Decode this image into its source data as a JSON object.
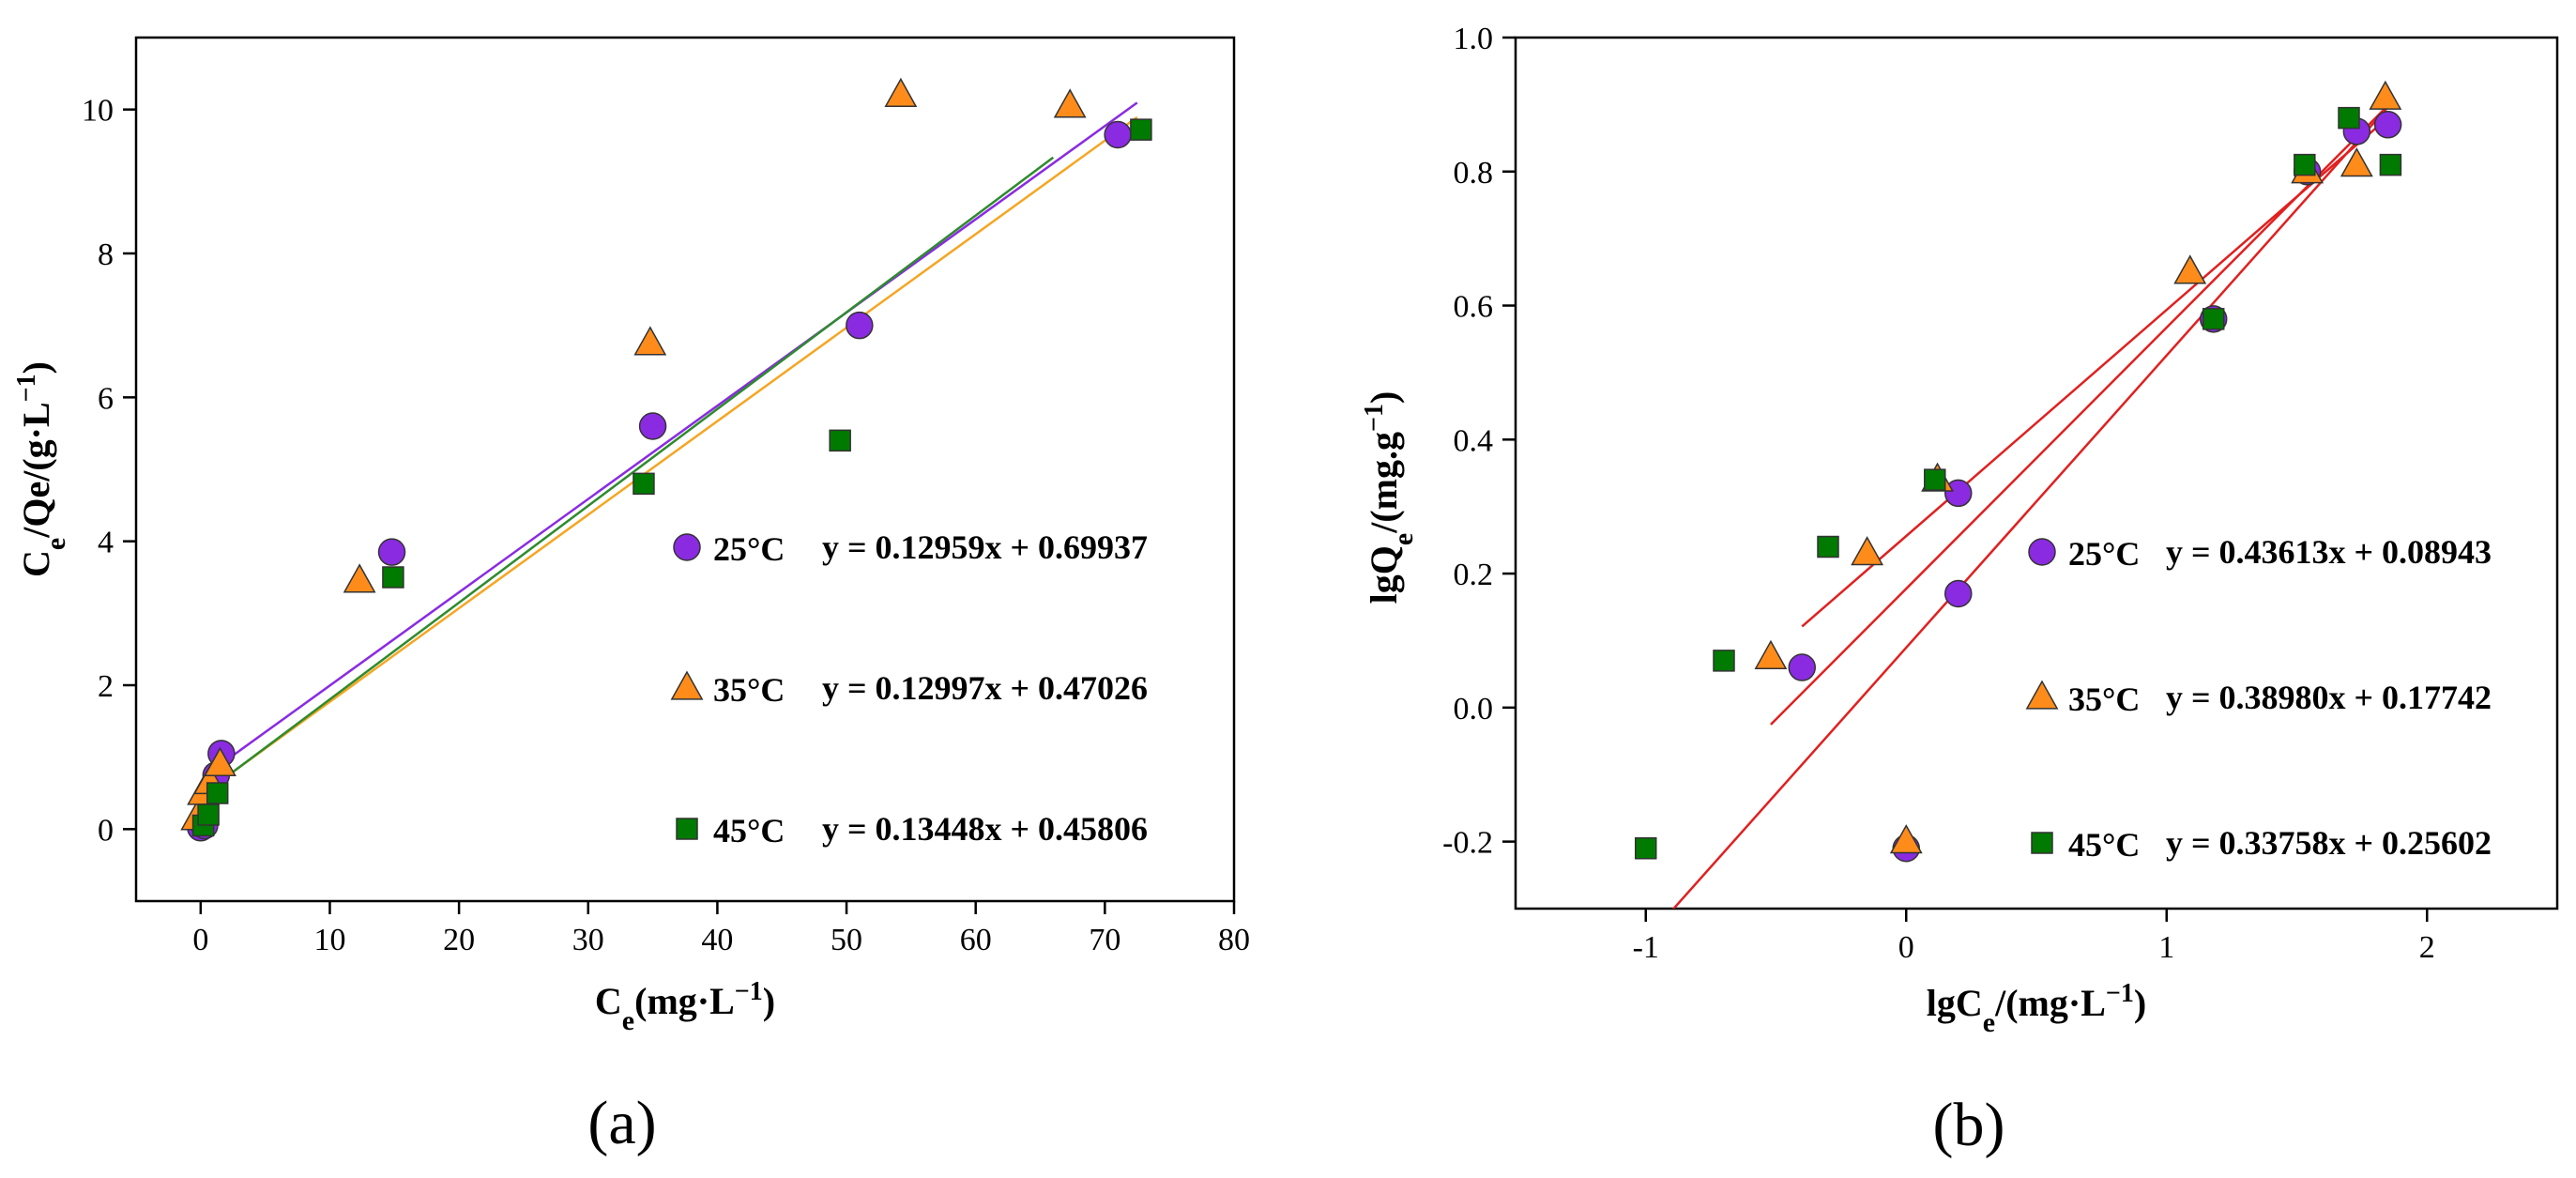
{
  "chart_data": [
    {
      "type": "scatter",
      "panel_label": "(a)",
      "xlabel": "Ce(mg·L−1)",
      "ylabel": "Ce/Qe/(g·L−1)",
      "xlim": [
        -5,
        80
      ],
      "ylim": [
        -1,
        11
      ],
      "x_ticks": [
        0,
        10,
        20,
        30,
        40,
        50,
        60,
        70,
        80
      ],
      "y_ticks": [
        0,
        2,
        4,
        6,
        8,
        10
      ],
      "x_tick_labels": [
        "0",
        "10",
        "20",
        "30",
        "40",
        "50",
        "60",
        "70",
        "80"
      ],
      "y_tick_labels": [
        "0",
        "2",
        "4",
        "6",
        "8",
        "10"
      ],
      "legend_position": "right",
      "series": [
        {
          "name": "25°C",
          "marker": "circle",
          "color": "#8a2be2",
          "line_color": "#8a2be2",
          "equation": "y = 0.12959x + 0.69937",
          "fit": {
            "slope": 0.12959,
            "intercept": 0.69937,
            "x_range": [
              0.5,
              72.5
            ]
          },
          "points": [
            [
              0,
              0.02
            ],
            [
              0.3,
              0.05
            ],
            [
              1.2,
              0.75
            ],
            [
              1.6,
              1.05
            ],
            [
              14.8,
              3.85
            ],
            [
              35,
              5.6
            ],
            [
              51,
              7.0
            ],
            [
              71,
              9.65
            ]
          ]
        },
        {
          "name": "35°C",
          "marker": "triangle",
          "color": "#ff8c1a",
          "line_color": "#f5a623",
          "equation": "y = 0.12997x + 0.47026",
          "fit": {
            "slope": 0.12997,
            "intercept": 0.47026,
            "x_range": [
              0.5,
              72.5
            ]
          },
          "points": [
            [
              -0.3,
              0.15
            ],
            [
              0.2,
              0.5
            ],
            [
              0.7,
              0.65
            ],
            [
              1.5,
              0.9
            ],
            [
              12.3,
              3.45
            ],
            [
              34.8,
              6.75
            ],
            [
              54.2,
              10.2
            ],
            [
              67.3,
              10.05
            ]
          ]
        },
        {
          "name": "45°C",
          "marker": "square",
          "color": "#007a00",
          "line_color": "#2e8b2e",
          "equation": "y = 0.13448x + 0.45806",
          "fit": {
            "slope": 0.13448,
            "intercept": 0.45806,
            "x_range": [
              0.5,
              66
            ]
          },
          "points": [
            [
              0.2,
              0.05
            ],
            [
              0.6,
              0.2
            ],
            [
              1.3,
              0.5
            ],
            [
              14.9,
              3.5
            ],
            [
              34.3,
              4.8
            ],
            [
              49.5,
              5.4
            ],
            [
              72.8,
              9.72
            ]
          ]
        }
      ]
    },
    {
      "type": "scatter",
      "panel_label": "(b)",
      "xlabel": "lgCe/(mg·L−1)",
      "ylabel": "lgQe/(mg.g−1)",
      "xlim": [
        -1.5,
        2.5
      ],
      "ylim": [
        -0.3,
        1.0
      ],
      "x_ticks": [
        -1,
        0,
        1,
        2
      ],
      "y_ticks": [
        -0.2,
        0.0,
        0.2,
        0.4,
        0.6,
        0.8,
        1.0
      ],
      "x_tick_labels": [
        "-1",
        "0",
        "1",
        "2"
      ],
      "y_tick_labels": [
        "-0.2",
        "0.0",
        "0.2",
        "0.4",
        "0.6",
        "0.8",
        "1.0"
      ],
      "legend_position": "right",
      "series": [
        {
          "name": "25°C",
          "marker": "circle",
          "color": "#8a2be2",
          "line_color": "#e02020",
          "equation": "y = 0.43613x + 0.08943",
          "fit": {
            "slope": 0.43613,
            "intercept": 0.08943,
            "x_range": [
              -1.0,
              1.85
            ]
          },
          "points": [
            [
              -0.4,
              0.06
            ],
            [
              0,
              -0.21
            ],
            [
              0.2,
              0.17
            ],
            [
              0.2,
              0.32
            ],
            [
              1.18,
              0.58
            ],
            [
              1.54,
              0.8
            ],
            [
              1.73,
              0.86
            ],
            [
              1.85,
              0.87
            ]
          ]
        },
        {
          "name": "35°C",
          "marker": "triangle",
          "color": "#ff8c1a",
          "line_color": "#e02020",
          "equation": "y = 0.38980x + 0.17742",
          "fit": {
            "slope": 0.3898,
            "intercept": 0.17742,
            "x_range": [
              -0.52,
              1.85
            ]
          },
          "points": [
            [
              -0.52,
              0.075
            ],
            [
              -0.15,
              0.23
            ],
            [
              0,
              -0.2
            ],
            [
              0.12,
              0.34
            ],
            [
              1.09,
              0.65
            ],
            [
              1.54,
              0.8
            ],
            [
              1.73,
              0.81
            ],
            [
              1.84,
              0.91
            ]
          ]
        },
        {
          "name": "45°C",
          "marker": "square",
          "color": "#007a00",
          "line_color": "#e02020",
          "equation": "y = 0.33758x + 0.25602",
          "fit": {
            "slope": 0.33758,
            "intercept": 0.25602,
            "x_range": [
              -0.4,
              1.85
            ]
          },
          "points": [
            [
              -1.0,
              -0.21
            ],
            [
              -0.7,
              0.07
            ],
            [
              -0.3,
              0.24
            ],
            [
              0.11,
              0.34
            ],
            [
              1.18,
              0.58
            ],
            [
              1.53,
              0.81
            ],
            [
              1.7,
              0.88
            ],
            [
              1.86,
              0.81
            ]
          ]
        }
      ]
    }
  ]
}
